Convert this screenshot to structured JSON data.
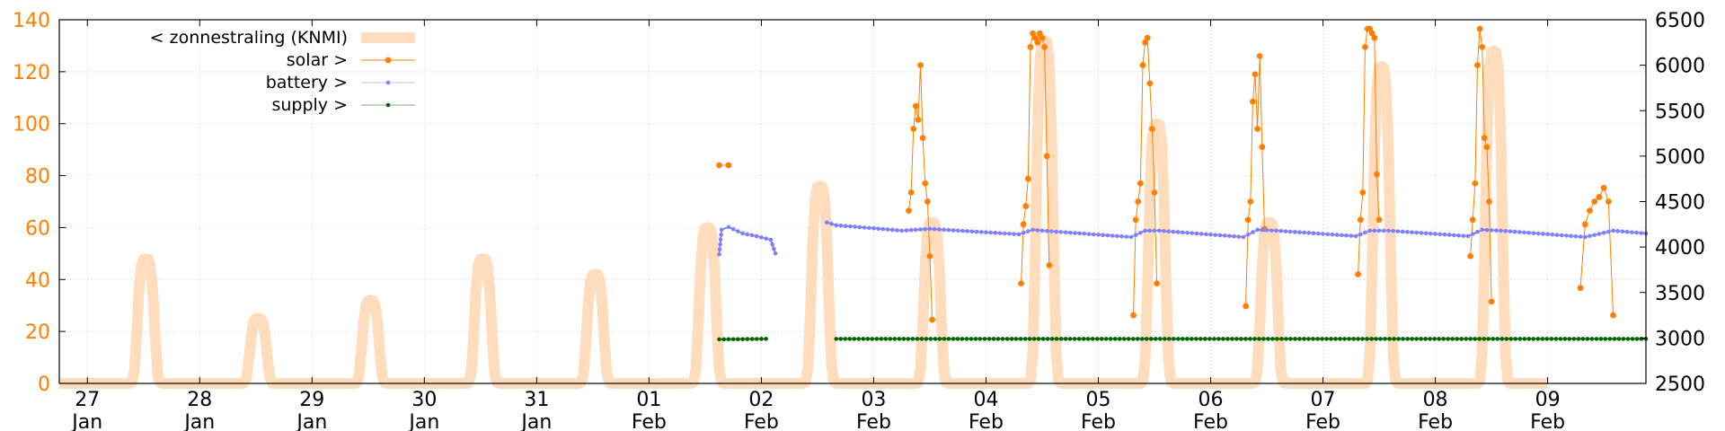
{
  "chart_data": {
    "type": "line",
    "x_range": [
      "2025-01-26T18:00",
      "2025-02-09T21:00"
    ],
    "x_ticks": [
      {
        "date": "2025-01-27",
        "day": "27",
        "month": "Jan"
      },
      {
        "date": "2025-01-28",
        "day": "28",
        "month": "Jan"
      },
      {
        "date": "2025-01-29",
        "day": "29",
        "month": "Jan"
      },
      {
        "date": "2025-01-30",
        "day": "30",
        "month": "Jan"
      },
      {
        "date": "2025-01-31",
        "day": "31",
        "month": "Jan"
      },
      {
        "date": "2025-02-01",
        "day": "01",
        "month": "Feb"
      },
      {
        "date": "2025-02-02",
        "day": "02",
        "month": "Feb"
      },
      {
        "date": "2025-02-03",
        "day": "03",
        "month": "Feb"
      },
      {
        "date": "2025-02-04",
        "day": "04",
        "month": "Feb"
      },
      {
        "date": "2025-02-05",
        "day": "05",
        "month": "Feb"
      },
      {
        "date": "2025-02-06",
        "day": "06",
        "month": "Feb"
      },
      {
        "date": "2025-02-07",
        "day": "07",
        "month": "Feb"
      },
      {
        "date": "2025-02-08",
        "day": "08",
        "month": "Feb"
      },
      {
        "date": "2025-02-09",
        "day": "09",
        "month": "Feb"
      }
    ],
    "y_left": {
      "range": [
        0,
        140
      ],
      "ticks": [
        0,
        20,
        40,
        60,
        80,
        100,
        120,
        140
      ],
      "color": "#ff7f00"
    },
    "y_right": {
      "range": [
        2500,
        6500
      ],
      "ticks": [
        2500,
        3000,
        3500,
        4000,
        4500,
        5000,
        5500,
        6000,
        6500
      ],
      "color": "#000000"
    },
    "grid": true,
    "legend": {
      "position": "top-left"
    },
    "series": [
      {
        "name": "< zonnestraling (KNMI)",
        "axis": "left",
        "color": "#ffdcbb",
        "style": "thick-line",
        "daily_peaks": [
          {
            "day": "2025-01-27",
            "peak": 48
          },
          {
            "day": "2025-01-28",
            "peak": 25
          },
          {
            "day": "2025-01-29",
            "peak": 32
          },
          {
            "day": "2025-01-30",
            "peak": 48
          },
          {
            "day": "2025-01-31",
            "peak": 42
          },
          {
            "day": "2025-02-01",
            "peak": 60
          },
          {
            "day": "2025-02-02",
            "peak": 76
          },
          {
            "day": "2025-02-03",
            "peak": 62
          },
          {
            "day": "2025-02-04",
            "peak": 132
          },
          {
            "day": "2025-02-05",
            "peak": 100
          },
          {
            "day": "2025-02-06",
            "peak": 62
          },
          {
            "day": "2025-02-07",
            "peak": 122
          },
          {
            "day": "2025-02-08",
            "peak": 128
          }
        ]
      },
      {
        "name": "solar >",
        "axis": "right",
        "color": "#ff7f00",
        "style": "line-points",
        "segments": [
          [
            [
              "2025-02-01T15:00",
              4900
            ],
            [
              "2025-02-01T17:00",
              4900
            ]
          ],
          [
            [
              "2025-02-03T07:30",
              4400
            ],
            [
              "2025-02-03T08:00",
              4600
            ],
            [
              "2025-02-03T08:30",
              5300
            ],
            [
              "2025-02-03T09:00",
              5550
            ],
            [
              "2025-02-03T09:30",
              5400
            ],
            [
              "2025-02-03T10:00",
              6000
            ],
            [
              "2025-02-03T10:30",
              5200
            ],
            [
              "2025-02-03T11:00",
              4700
            ],
            [
              "2025-02-03T11:30",
              4500
            ],
            [
              "2025-02-03T12:00",
              3900
            ],
            [
              "2025-02-03T12:30",
              3200
            ]
          ],
          [
            [
              "2025-02-04T07:30",
              3600
            ],
            [
              "2025-02-04T08:00",
              4250
            ],
            [
              "2025-02-04T08:30",
              4450
            ],
            [
              "2025-02-04T09:00",
              4750
            ],
            [
              "2025-02-04T09:30",
              6200
            ],
            [
              "2025-02-04T10:00",
              6350
            ],
            [
              "2025-02-04T10:30",
              6300
            ],
            [
              "2025-02-04T11:00",
              6250
            ],
            [
              "2025-02-04T11:30",
              6350
            ],
            [
              "2025-02-04T12:00",
              6300
            ],
            [
              "2025-02-04T12:30",
              6200
            ],
            [
              "2025-02-04T13:00",
              5000
            ],
            [
              "2025-02-04T13:30",
              3800
            ]
          ],
          [
            [
              "2025-02-05T07:30",
              3250
            ],
            [
              "2025-02-05T08:00",
              4300
            ],
            [
              "2025-02-05T08:30",
              4500
            ],
            [
              "2025-02-05T09:00",
              4700
            ],
            [
              "2025-02-05T09:30",
              6000
            ],
            [
              "2025-02-05T10:00",
              6250
            ],
            [
              "2025-02-05T10:30",
              6300
            ],
            [
              "2025-02-05T11:00",
              5800
            ],
            [
              "2025-02-05T11:30",
              5300
            ],
            [
              "2025-02-05T12:00",
              4600
            ],
            [
              "2025-02-05T12:30",
              3600
            ]
          ],
          [
            [
              "2025-02-06T07:30",
              3350
            ],
            [
              "2025-02-06T08:00",
              4300
            ],
            [
              "2025-02-06T08:30",
              4500
            ],
            [
              "2025-02-06T09:00",
              5600
            ],
            [
              "2025-02-06T09:30",
              5900
            ],
            [
              "2025-02-06T10:00",
              5300
            ],
            [
              "2025-02-06T10:30",
              6100
            ],
            [
              "2025-02-06T11:00",
              5100
            ],
            [
              "2025-02-06T11:30",
              4200
            ]
          ],
          [
            [
              "2025-02-07T07:30",
              3700
            ],
            [
              "2025-02-07T08:00",
              4300
            ],
            [
              "2025-02-07T08:30",
              4600
            ],
            [
              "2025-02-07T09:00",
              6200
            ],
            [
              "2025-02-07T09:30",
              6400
            ],
            [
              "2025-02-07T10:00",
              6400
            ],
            [
              "2025-02-07T10:30",
              6350
            ],
            [
              "2025-02-07T11:00",
              6300
            ],
            [
              "2025-02-07T11:30",
              4800
            ],
            [
              "2025-02-07T12:00",
              4300
            ]
          ],
          [
            [
              "2025-02-08T07:30",
              3900
            ],
            [
              "2025-02-08T08:00",
              4300
            ],
            [
              "2025-02-08T08:30",
              4700
            ],
            [
              "2025-02-08T09:00",
              6000
            ],
            [
              "2025-02-08T09:30",
              6400
            ],
            [
              "2025-02-08T10:00",
              6200
            ],
            [
              "2025-02-08T10:30",
              5200
            ],
            [
              "2025-02-08T11:00",
              5100
            ],
            [
              "2025-02-08T11:30",
              4500
            ],
            [
              "2025-02-08T12:00",
              3400
            ]
          ],
          [
            [
              "2025-02-09T07:00",
              3550
            ],
            [
              "2025-02-09T08:00",
              4250
            ],
            [
              "2025-02-09T09:00",
              4400
            ],
            [
              "2025-02-09T10:00",
              4500
            ],
            [
              "2025-02-09T11:00",
              4550
            ],
            [
              "2025-02-09T12:00",
              4650
            ],
            [
              "2025-02-09T13:00",
              4500
            ],
            [
              "2025-02-09T14:00",
              3250
            ]
          ]
        ]
      },
      {
        "name": "battery >",
        "axis": "right",
        "color": "#8080ff",
        "style": "line-points",
        "segments": [
          [
            [
              "2025-02-01T15:00",
              3920
            ],
            [
              "2025-02-01T15:30",
              4190
            ],
            [
              "2025-02-01T17:00",
              4220
            ],
            [
              "2025-02-01T20:00",
              4150
            ],
            [
              "2025-02-01T23:00",
              4120
            ],
            [
              "2025-02-02T02:00",
              4080
            ],
            [
              "2025-02-02T03:00",
              3930
            ]
          ],
          [
            [
              "2025-02-02T14:00",
              4270
            ],
            [
              "2025-02-02T16:00",
              4240
            ],
            [
              "2025-02-03T06:00",
              4180
            ],
            [
              "2025-02-03T12:00",
              4200
            ],
            [
              "2025-02-04T07:00",
              4140
            ],
            [
              "2025-02-04T10:00",
              4190
            ],
            [
              "2025-02-04T12:00",
              4180
            ],
            [
              "2025-02-05T07:00",
              4110
            ],
            [
              "2025-02-05T10:00",
              4180
            ],
            [
              "2025-02-05T13:00",
              4180
            ],
            [
              "2025-02-06T07:00",
              4110
            ],
            [
              "2025-02-06T10:00",
              4190
            ],
            [
              "2025-02-06T14:00",
              4180
            ],
            [
              "2025-02-07T07:00",
              4120
            ],
            [
              "2025-02-07T10:00",
              4180
            ],
            [
              "2025-02-07T14:00",
              4180
            ],
            [
              "2025-02-08T07:00",
              4120
            ],
            [
              "2025-02-08T10:00",
              4190
            ],
            [
              "2025-02-08T14:00",
              4180
            ],
            [
              "2025-02-09T08:00",
              4110
            ],
            [
              "2025-02-09T14:00",
              4180
            ],
            [
              "2025-02-09T21:00",
              4150
            ]
          ]
        ]
      },
      {
        "name": "supply >",
        "axis": "right",
        "color": "#006400",
        "style": "line-points",
        "segments": [
          [
            [
              "2025-02-01T15:00",
              2985
            ],
            [
              "2025-02-02T01:00",
              2990
            ]
          ],
          [
            [
              "2025-02-02T16:00",
              2990
            ],
            [
              "2025-02-09T21:00",
              2990
            ]
          ]
        ]
      }
    ]
  }
}
